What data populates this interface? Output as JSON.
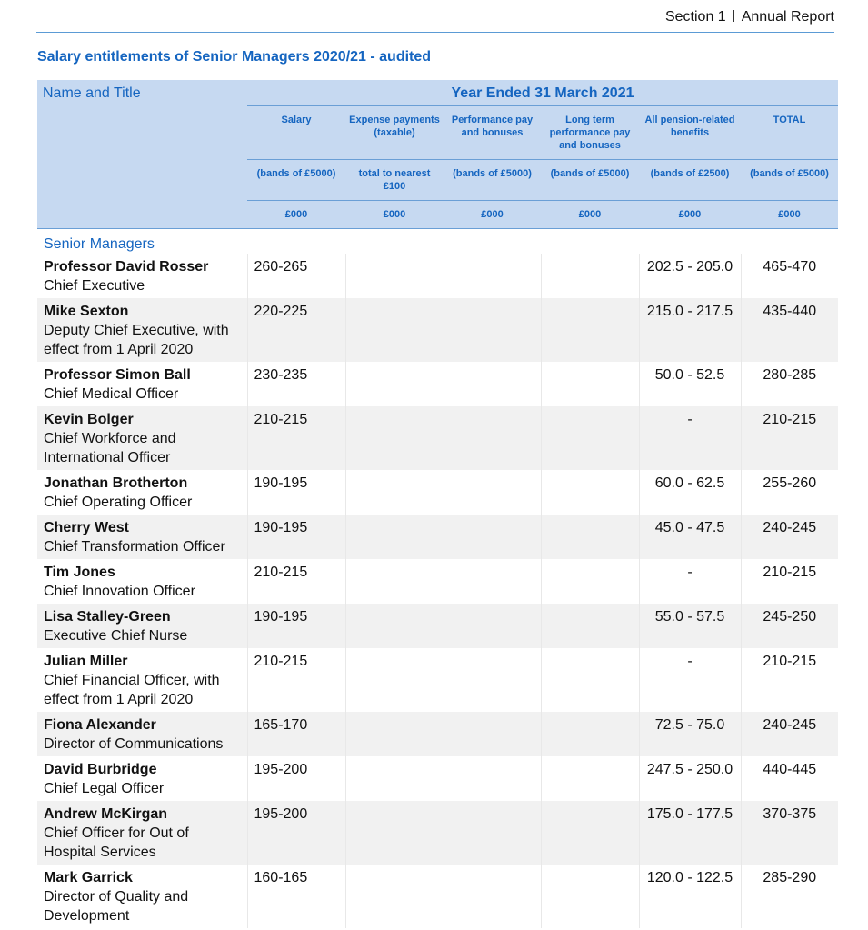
{
  "header": {
    "section": "Section 1",
    "report": "Annual Report"
  },
  "title": "Salary entitlements of Senior Managers 2020/21 - audited",
  "table": {
    "name_header": "Name and Title",
    "period": "Year Ended 31 March 2021",
    "columns": [
      "Salary",
      "Expense payments (taxable)",
      "Performance pay and bonuses",
      "Long term performance pay and bonuses",
      "All pension-related benefits",
      "TOTAL"
    ],
    "bands": [
      "(bands of £5000)",
      "total to nearest £100",
      "(bands of £5000)",
      "(bands of £5000)",
      "(bands of £2500)",
      "(bands of £5000)"
    ],
    "units": [
      "£000",
      "£000",
      "£000",
      "£000",
      "£000",
      "£000"
    ],
    "group": "Senior Managers",
    "rows": [
      {
        "name": "Professor David Rosser",
        "title": "Chief Executive",
        "salary": "260-265",
        "pension": "202.5 - 205.0",
        "total": "465-470"
      },
      {
        "name": "Mike Sexton",
        "title": "Deputy Chief Executive, with effect from 1 April 2020",
        "salary": "220-225",
        "pension": "215.0 - 217.5",
        "total": "435-440"
      },
      {
        "name": "Professor Simon Ball",
        "title": "Chief Medical Officer",
        "salary": "230-235",
        "pension": "50.0 - 52.5",
        "total": "280-285"
      },
      {
        "name": "Kevin Bolger",
        "title": "Chief Workforce and International Officer",
        "salary": "210-215",
        "pension": "-",
        "total": "210-215"
      },
      {
        "name": "Jonathan Brotherton",
        "title": "Chief Operating Officer",
        "salary": "190-195",
        "pension": "60.0 - 62.5",
        "total": "255-260"
      },
      {
        "name": "Cherry West",
        "title": "Chief Transformation Officer",
        "salary": "190-195",
        "pension": "45.0 - 47.5",
        "total": "240-245"
      },
      {
        "name": "Tim Jones",
        "title": "Chief Innovation Officer",
        "salary": "210-215",
        "pension": "-",
        "total": "210-215"
      },
      {
        "name": "Lisa Stalley-Green",
        "title": "Executive Chief Nurse",
        "salary": "190-195",
        "pension": "55.0 - 57.5",
        "total": "245-250"
      },
      {
        "name": "Julian Miller",
        "title": "Chief Financial Officer, with effect from 1 April 2020",
        "salary": "210-215",
        "pension": "-",
        "total": "210-215"
      },
      {
        "name": "Fiona Alexander",
        "title": "Director of Communications",
        "salary": "165-170",
        "pension": "72.5 - 75.0",
        "total": "240-245"
      },
      {
        "name": "David Burbridge",
        "title": "Chief Legal Officer",
        "salary": "195-200",
        "pension": "247.5 - 250.0",
        "total": "440-445"
      },
      {
        "name": "Andrew McKirgan",
        "title": "Chief Officer for Out of Hospital Services",
        "salary": "195-200",
        "pension": "175.0 - 177.5",
        "total": "370-375"
      },
      {
        "name": "Mark Garrick",
        "title": "Director of Quality and Development",
        "salary": "160-165",
        "pension": "120.0 - 122.5",
        "total": "285-290"
      }
    ]
  }
}
